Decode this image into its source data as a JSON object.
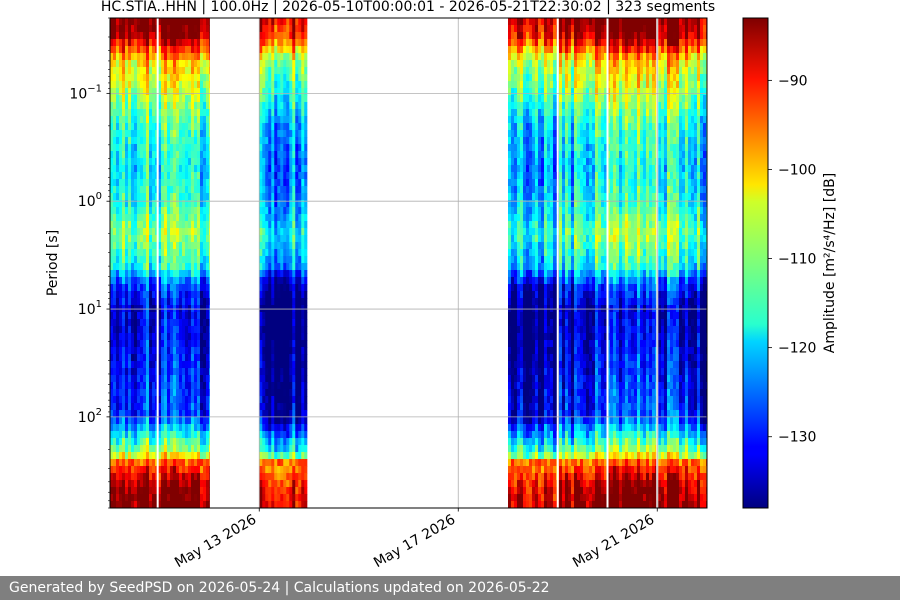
{
  "chart_data": {
    "type": "heatmap",
    "title": "HC.STIA..HHN | 100.0Hz | 2026-05-10T00:00:01 - 2026-05-21T22:30:02 | 323 segments",
    "xlabel": "",
    "ylabel": "Period [s]",
    "colorbar_label": "Amplitude [m²/s⁴/Hz] [dB]",
    "colormap": "jet",
    "y_scale": "log",
    "y_inverted": true,
    "y_range": [
      0.02,
      700
    ],
    "y_ticks": [
      {
        "value": 0.1,
        "base": "10",
        "exp": "−1"
      },
      {
        "value": 1,
        "base": "10",
        "exp": "0"
      },
      {
        "value": 10,
        "base": "10",
        "exp": "1"
      },
      {
        "value": 100,
        "base": "10",
        "exp": "2"
      }
    ],
    "x_range": [
      "2026-05-10T00:00:00",
      "2026-05-22T00:00:00"
    ],
    "x_ticks": [
      {
        "value": "2026-05-13",
        "label": "May 13 2026"
      },
      {
        "value": "2026-05-17",
        "label": "May 17 2026"
      },
      {
        "value": "2026-05-21",
        "label": "May 21 2026"
      }
    ],
    "color_range": [
      -138,
      -83
    ],
    "colorbar_ticks": [
      {
        "value": -90,
        "label": "−90"
      },
      {
        "value": -100,
        "label": "−100"
      },
      {
        "value": -110,
        "label": "−110"
      },
      {
        "value": -120,
        "label": "−120"
      },
      {
        "value": -130,
        "label": "−130"
      }
    ],
    "grid": true,
    "data_segments": [
      {
        "start": "2026-05-10T00:00:00",
        "end": "2026-05-12T00:00:00"
      },
      {
        "start": "2026-05-13T00:00:00",
        "end": "2026-05-13T23:00:00"
      },
      {
        "start": "2026-05-18T00:00:00",
        "end": "2026-05-22T00:00:00"
      }
    ],
    "data_gaps": [
      "2026-05-10T23:00:00",
      "2026-05-19T00:00:00",
      "2026-05-20T00:00:00",
      "2026-05-21T00:00:00"
    ],
    "amplitude_profile_db": [
      {
        "period": 0.02,
        "db": -83
      },
      {
        "period": 0.03,
        "db": -87
      },
      {
        "period": 0.05,
        "db": -104
      },
      {
        "period": 0.1,
        "db": -110
      },
      {
        "period": 0.2,
        "db": -117
      },
      {
        "period": 0.5,
        "db": -120
      },
      {
        "period": 1,
        "db": -118
      },
      {
        "period": 2,
        "db": -112
      },
      {
        "period": 4,
        "db": -118
      },
      {
        "period": 6,
        "db": -130
      },
      {
        "period": 10,
        "db": -136
      },
      {
        "period": 30,
        "db": -133
      },
      {
        "period": 100,
        "db": -130
      },
      {
        "period": 200,
        "db": -112
      },
      {
        "period": 300,
        "db": -95
      },
      {
        "period": 450,
        "db": -86
      },
      {
        "period": 700,
        "db": -83
      }
    ]
  },
  "footer": {
    "text": "Generated by SeedPSD on 2026-05-24 | Calculations updated on 2026-05-22"
  }
}
